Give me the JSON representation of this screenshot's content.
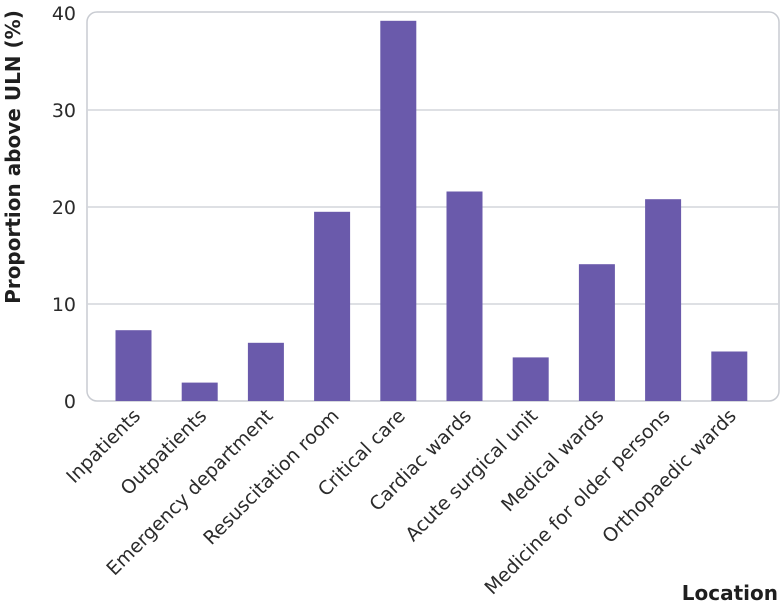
{
  "chart_data": {
    "type": "bar",
    "title": "",
    "xlabel": "Location",
    "ylabel": "Proportion above ULN (%)",
    "categories": [
      "Inpatients",
      "Outpatients",
      "Emergency department",
      "Resuscitation room",
      "Critical care",
      "Cardiac wards",
      "Acute surgical unit",
      "Medical wards",
      "Medicine for older persons",
      "Orthopaedic wards"
    ],
    "values": [
      7.3,
      1.9,
      6.0,
      19.5,
      39.2,
      21.6,
      4.5,
      14.1,
      20.8,
      5.1
    ],
    "ylim": [
      0,
      40
    ],
    "yticks": [
      0,
      10,
      20,
      30,
      40
    ],
    "grid": true,
    "bar_color": "#6a5aab",
    "grid_color": "#d3d6dc",
    "frame_color": "#c9ccd2"
  }
}
